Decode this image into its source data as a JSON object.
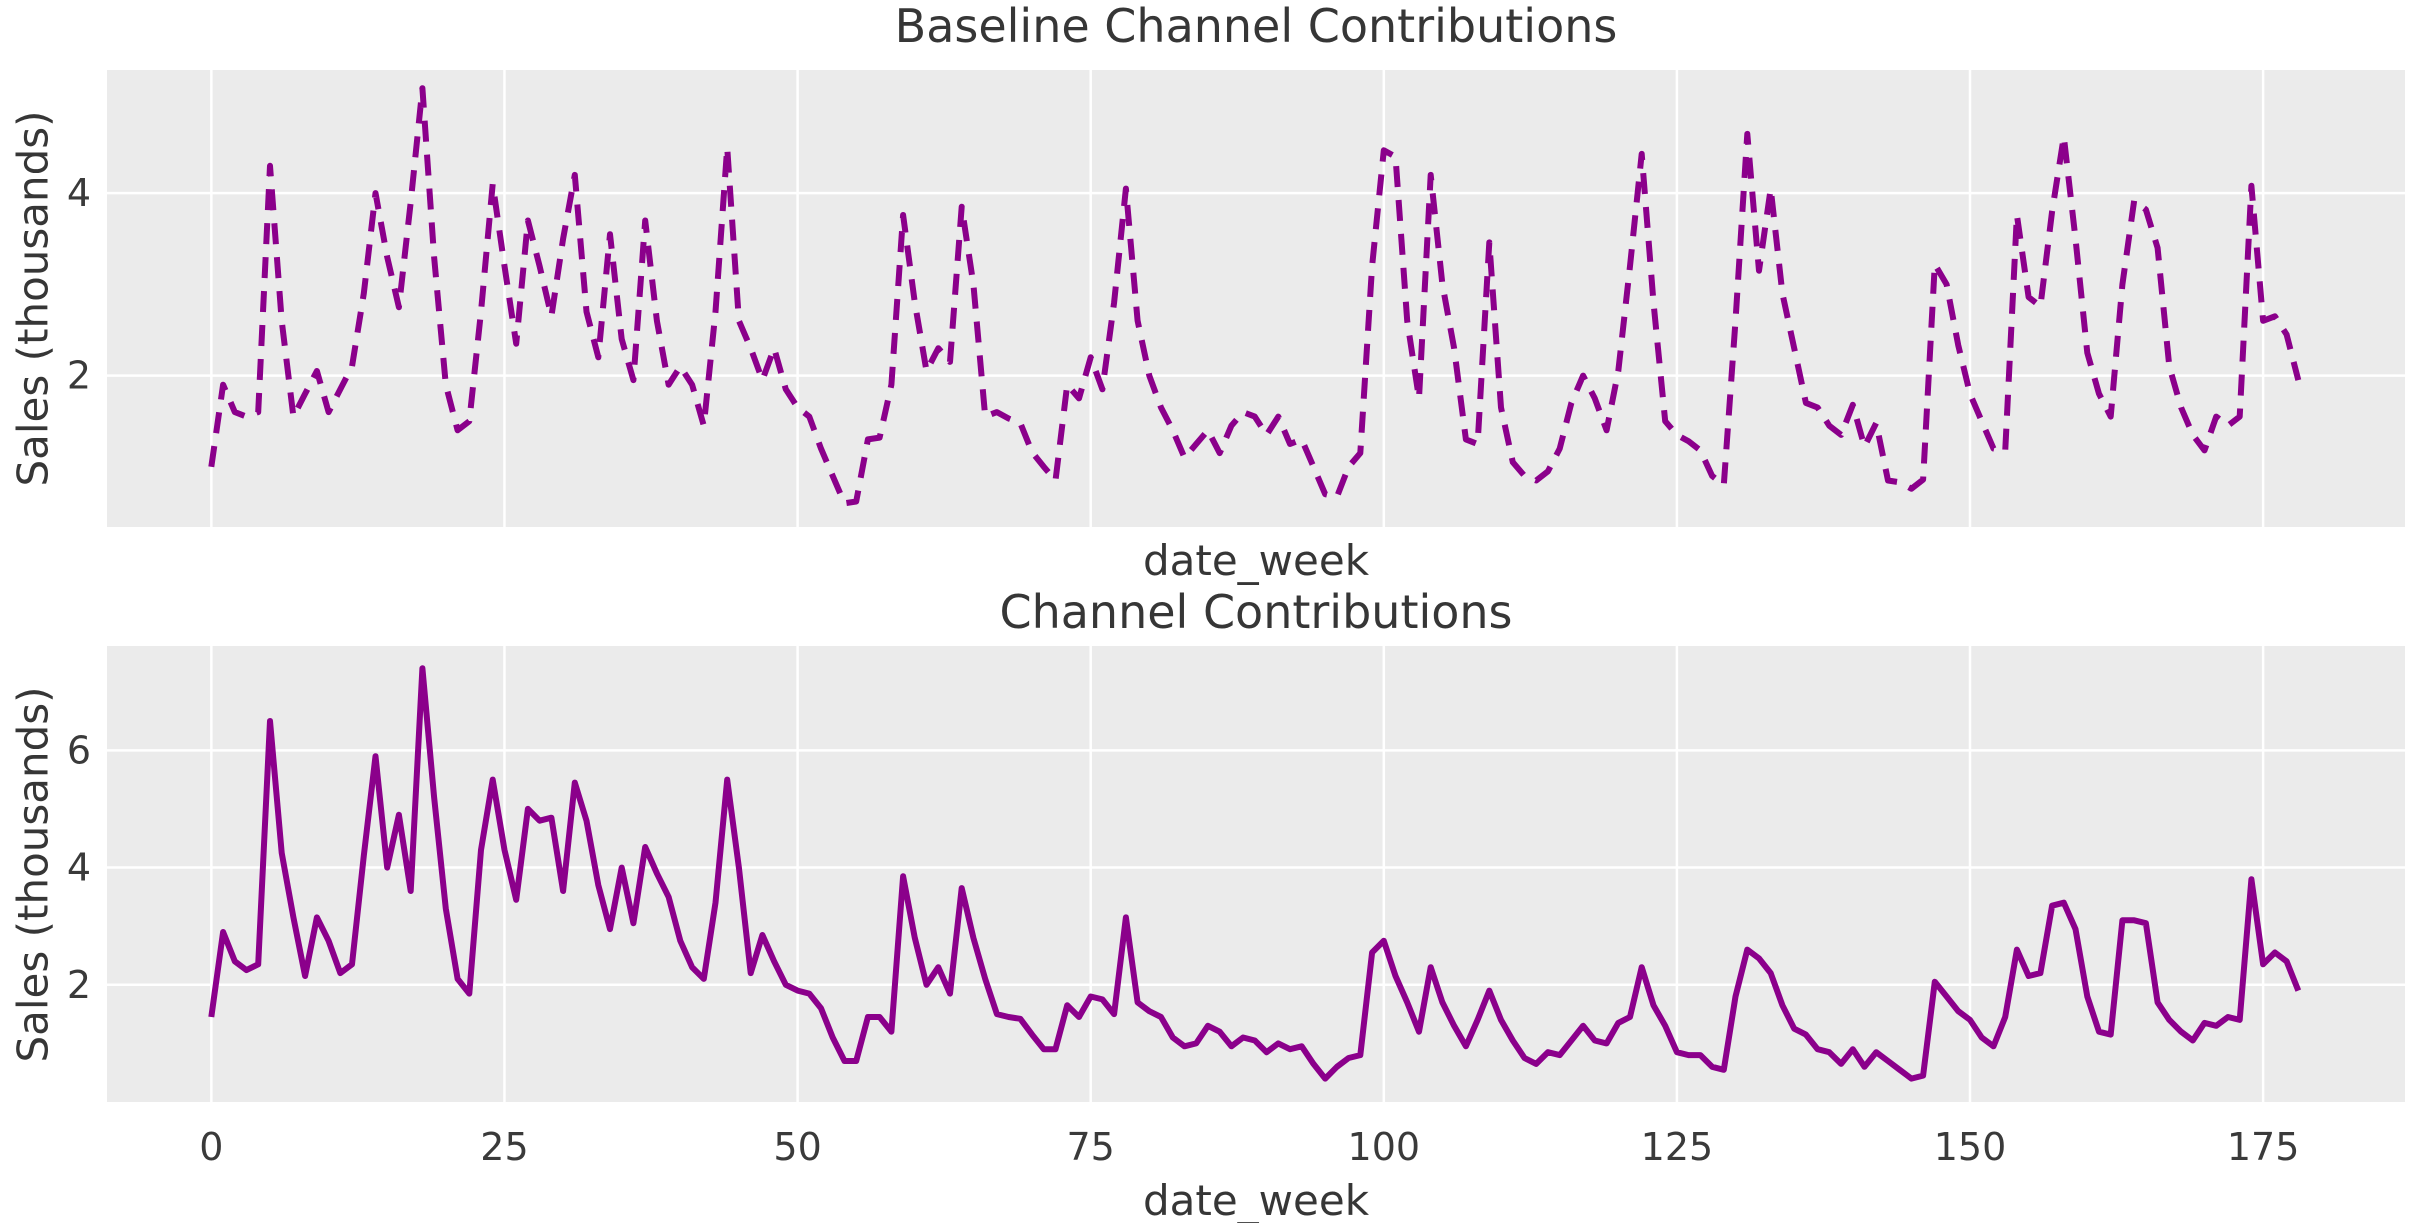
{
  "style": {
    "figure_bg": "#ffffff",
    "panel_bg": "#ebebeb",
    "grid_color": "#ffffff",
    "line_color": "#8B008B",
    "text_color": "#363636",
    "tick_color": "#3a3a3a"
  },
  "chart_data": [
    {
      "type": "line",
      "title": "Baseline Channel Contributions",
      "xlabel": "date_week",
      "ylabel": "Sales (thousands)",
      "line_style": "dashed",
      "color": "#8B008B",
      "x_start_week": 0,
      "xlim": [
        -8.9,
        187.1
      ],
      "ylim": [
        0.34,
        5.35
      ],
      "xticks": [
        0,
        25,
        50,
        75,
        100,
        125,
        150,
        175
      ],
      "xtick_labels_visible": false,
      "yticks": [
        2,
        4
      ],
      "grid": true,
      "legend": "none",
      "values": [
        1.0,
        1.9,
        1.6,
        1.55,
        1.6,
        4.3,
        2.6,
        1.55,
        1.8,
        2.05,
        1.6,
        1.85,
        2.1,
        2.9,
        4.0,
        3.3,
        2.75,
        3.9,
        5.15,
        3.3,
        1.9,
        1.4,
        1.5,
        2.7,
        4.1,
        3.2,
        2.35,
        3.7,
        3.2,
        2.65,
        3.5,
        4.2,
        2.7,
        2.2,
        3.55,
        2.4,
        1.95,
        3.7,
        2.6,
        1.9,
        2.1,
        1.9,
        1.45,
        2.7,
        4.5,
        2.6,
        2.3,
        1.95,
        2.3,
        1.85,
        1.65,
        1.55,
        1.2,
        0.9,
        0.6,
        0.62,
        1.3,
        1.32,
        1.9,
        3.76,
        2.8,
        2.05,
        2.3,
        2.15,
        3.85,
        3.0,
        1.55,
        1.6,
        1.53,
        1.48,
        1.16,
        1.0,
        0.85,
        1.9,
        1.75,
        2.2,
        1.85,
        2.8,
        4.05,
        2.6,
        2.0,
        1.65,
        1.4,
        1.1,
        1.25,
        1.4,
        1.15,
        1.45,
        1.6,
        1.55,
        1.35,
        1.55,
        1.25,
        1.3,
        1.0,
        0.7,
        0.67,
        1.0,
        1.15,
        3.2,
        4.47,
        4.4,
        2.6,
        1.75,
        4.2,
        3.0,
        2.3,
        1.3,
        1.25,
        3.46,
        1.65,
        1.05,
        0.9,
        0.85,
        0.95,
        1.2,
        1.7,
        2.0,
        1.75,
        1.4,
        2.05,
        3.2,
        4.43,
        2.8,
        1.5,
        1.35,
        1.28,
        1.18,
        0.9,
        0.8,
        2.6,
        4.65,
        3.15,
        4.05,
        2.9,
        2.3,
        1.7,
        1.65,
        1.45,
        1.35,
        1.68,
        1.22,
        1.48,
        0.85,
        0.83,
        0.76,
        0.86,
        3.22,
        3.0,
        2.33,
        1.8,
        1.5,
        1.2,
        1.17,
        3.76,
        2.86,
        2.76,
        3.8,
        4.62,
        3.5,
        2.25,
        1.8,
        1.55,
        3.0,
        3.92,
        3.82,
        3.4,
        2.1,
        1.65,
        1.35,
        1.18,
        1.55,
        1.45,
        1.55,
        4.08,
        2.6,
        2.65,
        2.45,
        1.95
      ]
    },
    {
      "type": "line",
      "title": "Channel Contributions",
      "xlabel": "date_week",
      "ylabel": "Sales (thousands)",
      "line_style": "solid",
      "color": "#8B008B",
      "x_start_week": 0,
      "xlim": [
        -8.9,
        187.1
      ],
      "ylim": [
        0.0,
        7.78
      ],
      "xticks": [
        0,
        25,
        50,
        75,
        100,
        125,
        150,
        175
      ],
      "xtick_labels_visible": true,
      "yticks": [
        2,
        4,
        6
      ],
      "grid": true,
      "legend": "none",
      "values": [
        1.45,
        2.9,
        2.4,
        2.25,
        2.35,
        6.5,
        4.25,
        3.15,
        2.15,
        3.15,
        2.75,
        2.2,
        2.35,
        4.2,
        5.9,
        4.0,
        4.9,
        3.6,
        7.4,
        5.2,
        3.3,
        2.1,
        1.85,
        4.3,
        5.5,
        4.3,
        3.45,
        5.0,
        4.8,
        4.85,
        3.6,
        5.45,
        4.8,
        3.7,
        2.95,
        4.0,
        3.05,
        4.35,
        3.9,
        3.5,
        2.75,
        2.3,
        2.1,
        3.4,
        5.5,
        4.0,
        2.2,
        2.85,
        2.4,
        2.0,
        1.9,
        1.85,
        1.6,
        1.1,
        0.7,
        0.7,
        1.45,
        1.45,
        1.2,
        3.85,
        2.8,
        2.0,
        2.3,
        1.85,
        3.65,
        2.8,
        2.1,
        1.5,
        1.45,
        1.42,
        1.15,
        0.9,
        0.9,
        1.65,
        1.45,
        1.8,
        1.75,
        1.5,
        3.15,
        1.7,
        1.55,
        1.45,
        1.1,
        0.95,
        1.0,
        1.3,
        1.2,
        0.95,
        1.1,
        1.05,
        0.85,
        1.0,
        0.9,
        0.95,
        0.65,
        0.4,
        0.6,
        0.75,
        0.8,
        2.55,
        2.75,
        2.15,
        1.7,
        1.2,
        2.3,
        1.7,
        1.3,
        0.95,
        1.4,
        1.9,
        1.4,
        1.05,
        0.75,
        0.65,
        0.85,
        0.8,
        1.05,
        1.3,
        1.05,
        1.0,
        1.35,
        1.45,
        2.3,
        1.65,
        1.3,
        0.85,
        0.8,
        0.8,
        0.6,
        0.55,
        1.8,
        2.6,
        2.45,
        2.2,
        1.65,
        1.25,
        1.15,
        0.9,
        0.85,
        0.65,
        0.9,
        0.6,
        0.85,
        0.7,
        0.55,
        0.4,
        0.45,
        2.05,
        1.8,
        1.55,
        1.4,
        1.1,
        0.95,
        1.45,
        2.6,
        2.15,
        2.2,
        3.35,
        3.4,
        2.95,
        1.8,
        1.2,
        1.15,
        3.1,
        3.1,
        3.05,
        1.7,
        1.4,
        1.2,
        1.05,
        1.35,
        1.3,
        1.45,
        1.4,
        3.8,
        2.35,
        2.55,
        2.4,
        1.9
      ]
    }
  ]
}
